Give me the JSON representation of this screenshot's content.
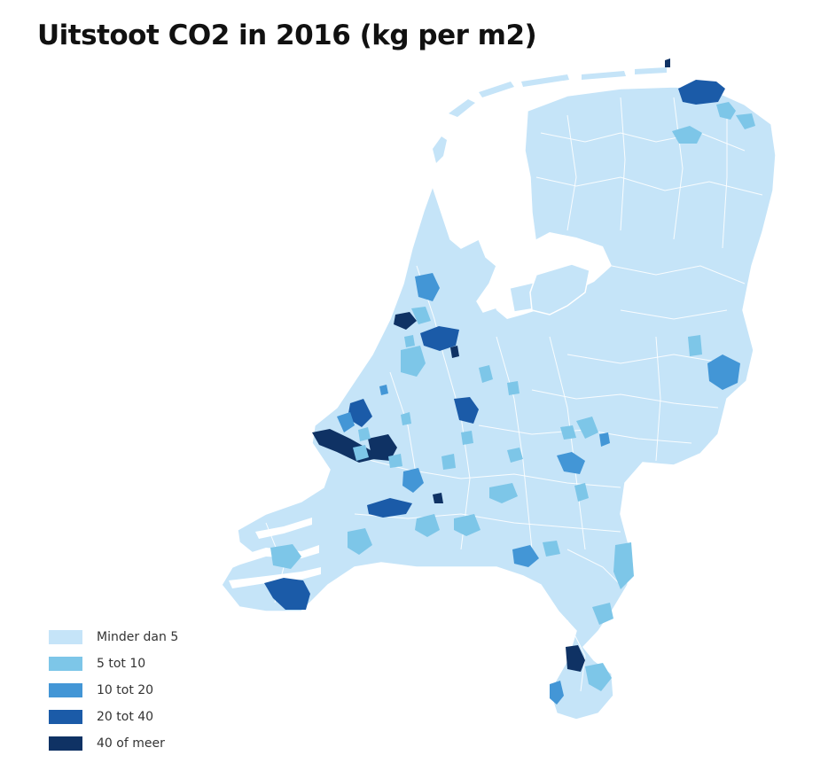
{
  "title": "Uitstoot CO2 in 2016 (kg per m2)",
  "map": {
    "region": "Nederland",
    "classes": [
      {
        "label": "Minder dan 5",
        "color": "#c5e4f8"
      },
      {
        "label": "5 tot 10",
        "color": "#7dc6e8"
      },
      {
        "label": "10 tot 20",
        "color": "#4396d6"
      },
      {
        "label": "20 tot 40",
        "color": "#1b5ba8"
      },
      {
        "label": "40 of meer",
        "color": "#0f3264"
      }
    ]
  },
  "legend": {
    "items": [
      {
        "label": "Minder dan 5",
        "color": "#c5e4f8"
      },
      {
        "label": "5 tot 10",
        "color": "#7dc6e8"
      },
      {
        "label": "10 tot 20",
        "color": "#4396d6"
      },
      {
        "label": "20 tot 40",
        "color": "#1b5ba8"
      },
      {
        "label": "40 of meer",
        "color": "#0f3264"
      }
    ]
  }
}
